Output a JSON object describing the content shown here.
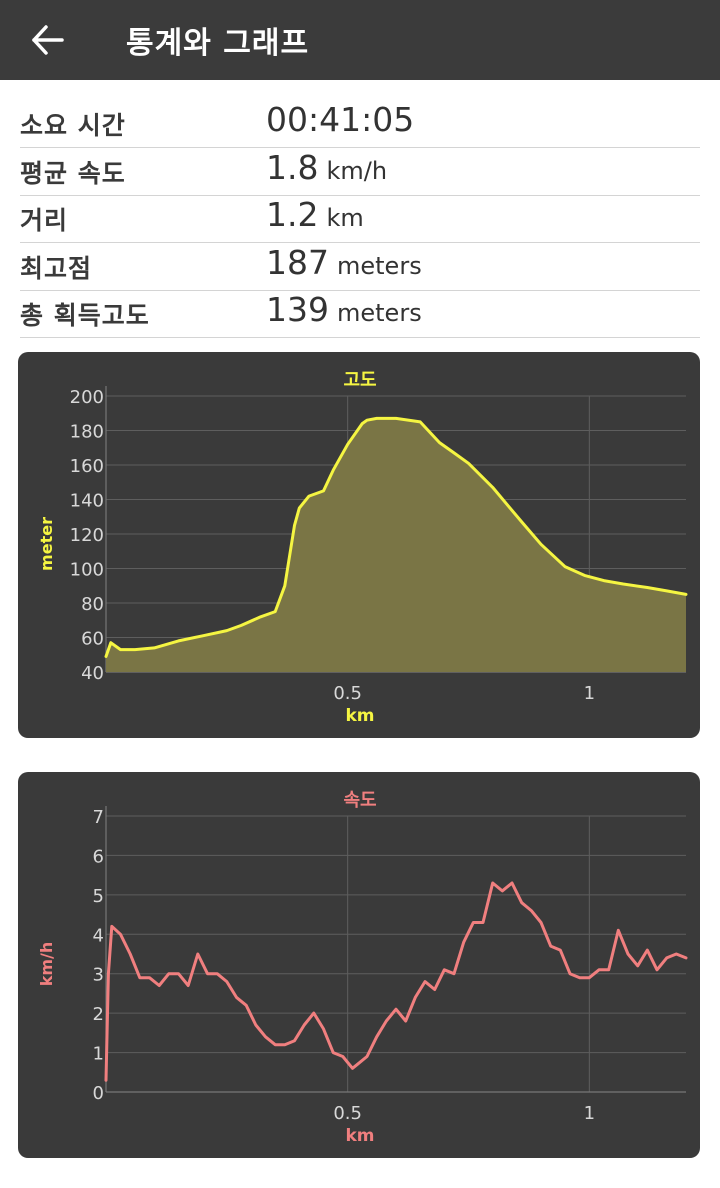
{
  "header": {
    "title": "통계와 그래프",
    "back_icon": "arrow-left-icon"
  },
  "stats": [
    {
      "label": "소요 시간",
      "value": "00:41:05",
      "unit": ""
    },
    {
      "label": "평균 속도",
      "value": "1.8",
      "unit": "km/h"
    },
    {
      "label": "거리",
      "value": "1.2",
      "unit": "km"
    },
    {
      "label": "최고점",
      "value": "187",
      "unit": "meters"
    },
    {
      "label": "총 획득고도",
      "value": "139",
      "unit": "meters"
    }
  ],
  "chart_data": [
    {
      "type": "area",
      "title": "고도",
      "xlabel": "km",
      "ylabel": "meter",
      "xlim": [
        0,
        1.2
      ],
      "ylim": [
        40,
        200
      ],
      "xticks": [
        "0.5",
        "1"
      ],
      "xtick_values": [
        0.5,
        1
      ],
      "yticks": [
        "40",
        "60",
        "80",
        "100",
        "120",
        "140",
        "160",
        "180",
        "200"
      ],
      "ytick_values": [
        40,
        60,
        80,
        100,
        120,
        140,
        160,
        180,
        200
      ],
      "grid": true,
      "color": "#f5f542",
      "fill": "#7a7545",
      "x": [
        0,
        0.01,
        0.03,
        0.06,
        0.1,
        0.15,
        0.2,
        0.25,
        0.28,
        0.32,
        0.35,
        0.37,
        0.39,
        0.4,
        0.42,
        0.45,
        0.47,
        0.5,
        0.53,
        0.54,
        0.56,
        0.6,
        0.65,
        0.69,
        0.72,
        0.75,
        0.8,
        0.83,
        0.86,
        0.9,
        0.95,
        0.99,
        1.03,
        1.07,
        1.12,
        1.16,
        1.2
      ],
      "values": [
        49,
        57,
        53,
        53,
        54,
        58,
        61,
        64,
        67,
        72,
        75,
        90,
        125,
        135,
        142,
        145,
        157,
        172,
        184,
        186,
        187,
        187,
        185,
        173,
        167,
        161,
        147,
        137,
        127,
        114,
        101,
        96,
        93,
        91,
        89,
        87,
        85
      ]
    },
    {
      "type": "line",
      "title": "속도",
      "xlabel": "km",
      "ylabel": "km/h",
      "xlim": [
        0,
        1.2
      ],
      "ylim": [
        0,
        7
      ],
      "xticks": [
        "0.5",
        "1"
      ],
      "xtick_values": [
        0.5,
        1
      ],
      "yticks": [
        "0",
        "1",
        "2",
        "3",
        "4",
        "5",
        "6",
        "7"
      ],
      "ytick_values": [
        0,
        1,
        2,
        3,
        4,
        5,
        6,
        7
      ],
      "grid": true,
      "color": "#f07f7f",
      "x": [
        0,
        0.005,
        0.012,
        0.03,
        0.05,
        0.07,
        0.09,
        0.11,
        0.13,
        0.15,
        0.17,
        0.19,
        0.21,
        0.23,
        0.25,
        0.27,
        0.29,
        0.31,
        0.33,
        0.35,
        0.37,
        0.39,
        0.41,
        0.43,
        0.45,
        0.47,
        0.49,
        0.51,
        0.52,
        0.54,
        0.56,
        0.58,
        0.6,
        0.62,
        0.64,
        0.66,
        0.68,
        0.7,
        0.72,
        0.74,
        0.76,
        0.78,
        0.8,
        0.82,
        0.84,
        0.86,
        0.88,
        0.9,
        0.92,
        0.94,
        0.96,
        0.98,
        1.0,
        1.02,
        1.04,
        1.06,
        1.08,
        1.1,
        1.12,
        1.14,
        1.16,
        1.18,
        1.2
      ],
      "values": [
        0.3,
        3.0,
        4.2,
        4.0,
        3.5,
        2.9,
        2.9,
        2.7,
        3.0,
        3.0,
        2.7,
        3.5,
        3.0,
        3.0,
        2.8,
        2.4,
        2.2,
        1.7,
        1.4,
        1.2,
        1.2,
        1.3,
        1.7,
        2.0,
        1.6,
        1.0,
        0.9,
        0.6,
        0.7,
        0.9,
        1.4,
        1.8,
        2.1,
        1.8,
        2.4,
        2.8,
        2.6,
        3.1,
        3.0,
        3.8,
        4.3,
        4.3,
        5.3,
        5.1,
        5.3,
        4.8,
        4.6,
        4.3,
        3.7,
        3.6,
        3.0,
        2.9,
        2.9,
        3.1,
        3.1,
        4.1,
        3.5,
        3.2,
        3.6,
        3.1,
        3.4,
        3.5,
        3.4
      ]
    }
  ]
}
